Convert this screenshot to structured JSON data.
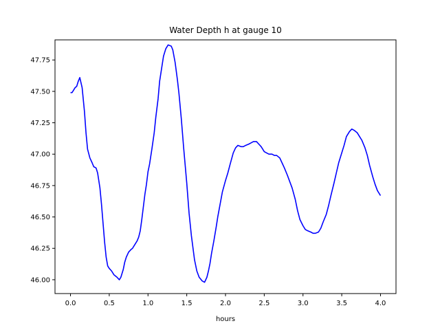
{
  "chart_data": {
    "type": "line",
    "title": "Water Depth h at gauge 10",
    "xlabel": "hours",
    "ylabel": "",
    "xlim": [
      -0.2,
      4.2
    ],
    "ylim": [
      45.89,
      47.91
    ],
    "xticks": [
      0.0,
      0.5,
      1.0,
      1.5,
      2.0,
      2.5,
      3.0,
      3.5,
      4.0
    ],
    "xtick_labels": [
      "0.0",
      "0.5",
      "1.0",
      "1.5",
      "2.0",
      "2.5",
      "3.0",
      "3.5",
      "4.0"
    ],
    "yticks": [
      46.0,
      46.25,
      46.5,
      46.75,
      47.0,
      47.25,
      47.5,
      47.75
    ],
    "ytick_labels": [
      "46.00",
      "46.25",
      "46.50",
      "46.75",
      "47.00",
      "47.25",
      "47.50",
      "47.75"
    ],
    "grid": false,
    "legend": "none",
    "series": [
      {
        "color": "#0000ff",
        "x": [
          0.0,
          0.02,
          0.04,
          0.06,
          0.08,
          0.1,
          0.12,
          0.15,
          0.18,
          0.2,
          0.22,
          0.25,
          0.28,
          0.3,
          0.33,
          0.35,
          0.38,
          0.4,
          0.42,
          0.44,
          0.46,
          0.48,
          0.5,
          0.53,
          0.56,
          0.6,
          0.63,
          0.65,
          0.68,
          0.7,
          0.72,
          0.75,
          0.78,
          0.8,
          0.82,
          0.84,
          0.86,
          0.88,
          0.9,
          0.92,
          0.94,
          0.96,
          0.98,
          1.0,
          1.02,
          1.05,
          1.08,
          1.1,
          1.13,
          1.15,
          1.18,
          1.2,
          1.23,
          1.26,
          1.3,
          1.32,
          1.35,
          1.38,
          1.4,
          1.43,
          1.46,
          1.5,
          1.53,
          1.56,
          1.6,
          1.63,
          1.66,
          1.7,
          1.73,
          1.76,
          1.78,
          1.8,
          1.82,
          1.85,
          1.88,
          1.9,
          1.93,
          1.96,
          2.0,
          2.03,
          2.06,
          2.1,
          2.13,
          2.16,
          2.2,
          2.23,
          2.26,
          2.3,
          2.33,
          2.36,
          2.4,
          2.43,
          2.46,
          2.5,
          2.53,
          2.56,
          2.6,
          2.63,
          2.66,
          2.7,
          2.73,
          2.76,
          2.8,
          2.83,
          2.86,
          2.9,
          2.93,
          2.96,
          3.0,
          3.03,
          3.06,
          3.1,
          3.13,
          3.16,
          3.2,
          3.23,
          3.26,
          3.3,
          3.33,
          3.36,
          3.4,
          3.43,
          3.46,
          3.5,
          3.53,
          3.56,
          3.6,
          3.63,
          3.66,
          3.7,
          3.73,
          3.76,
          3.8,
          3.83,
          3.86,
          3.9,
          3.93,
          3.96,
          4.0
        ],
        "y": [
          47.49,
          47.49,
          47.51,
          47.53,
          47.54,
          47.58,
          47.61,
          47.53,
          47.34,
          47.17,
          47.04,
          46.97,
          46.93,
          46.9,
          46.89,
          46.85,
          46.73,
          46.6,
          46.45,
          46.3,
          46.18,
          46.11,
          46.09,
          46.07,
          46.04,
          46.02,
          46.0,
          46.02,
          46.08,
          46.14,
          46.18,
          46.22,
          46.24,
          46.25,
          46.27,
          46.29,
          46.31,
          46.34,
          46.39,
          46.48,
          46.58,
          46.68,
          46.76,
          46.86,
          46.92,
          47.04,
          47.17,
          47.29,
          47.44,
          47.58,
          47.7,
          47.78,
          47.84,
          47.87,
          47.86,
          47.83,
          47.73,
          47.59,
          47.48,
          47.28,
          47.05,
          46.77,
          46.53,
          46.35,
          46.16,
          46.07,
          46.02,
          45.99,
          45.98,
          46.02,
          46.07,
          46.13,
          46.21,
          46.31,
          46.42,
          46.5,
          46.6,
          46.7,
          46.79,
          46.85,
          46.92,
          47.01,
          47.05,
          47.07,
          47.06,
          47.06,
          47.07,
          47.08,
          47.09,
          47.1,
          47.1,
          47.08,
          47.06,
          47.02,
          47.01,
          47.0,
          47.0,
          46.99,
          46.99,
          46.97,
          46.93,
          46.89,
          46.83,
          46.78,
          46.73,
          46.64,
          46.55,
          46.48,
          46.43,
          46.4,
          46.39,
          46.38,
          46.37,
          46.37,
          46.38,
          46.41,
          46.46,
          46.52,
          46.59,
          46.67,
          46.77,
          46.85,
          46.93,
          47.01,
          47.07,
          47.14,
          47.18,
          47.2,
          47.19,
          47.17,
          47.14,
          47.11,
          47.05,
          46.99,
          46.91,
          46.82,
          46.76,
          46.71,
          46.67
        ]
      }
    ]
  }
}
